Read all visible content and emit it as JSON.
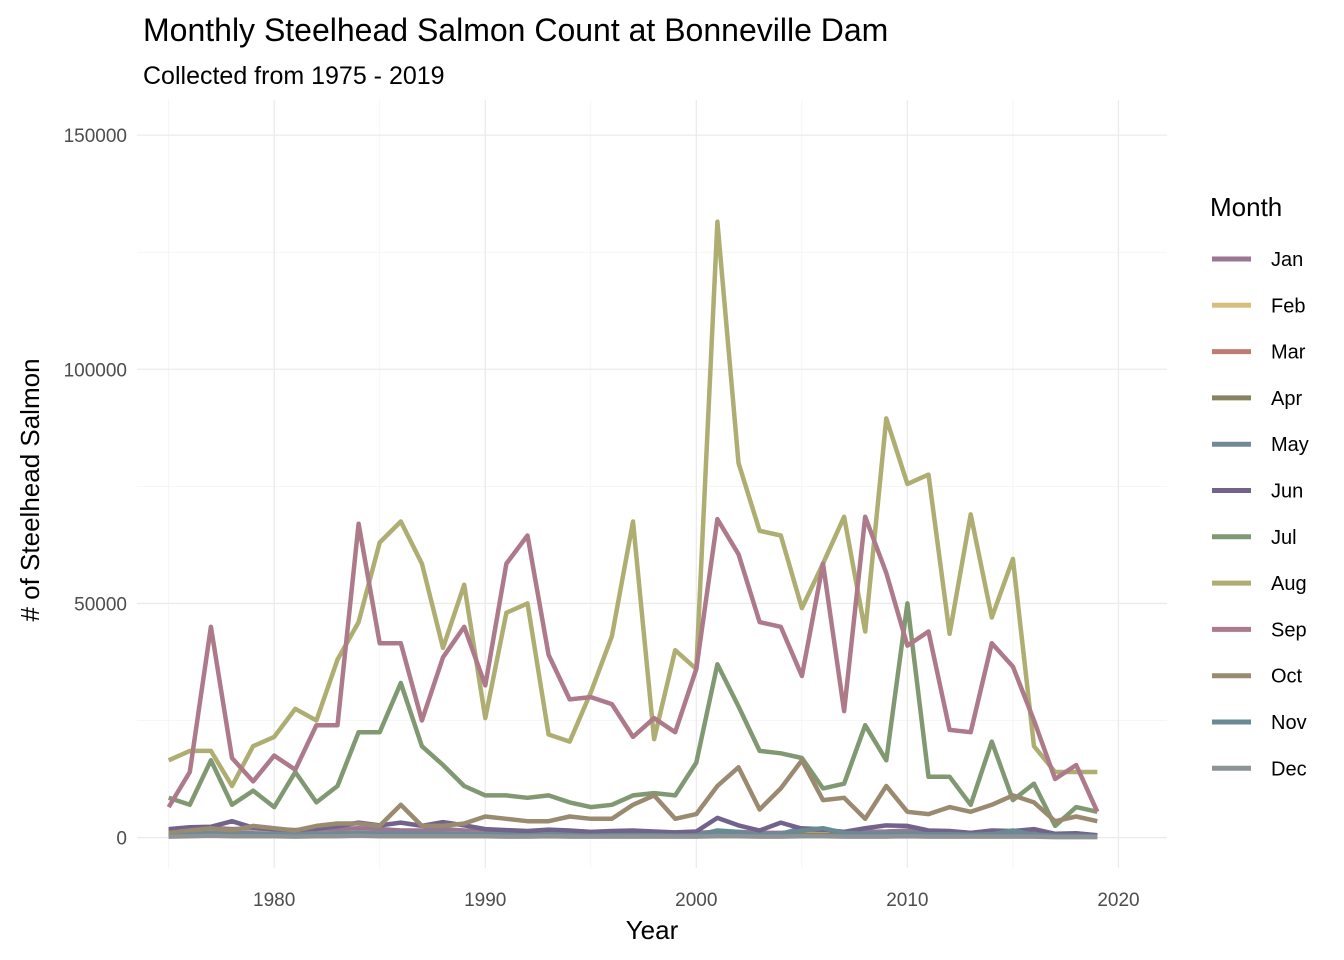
{
  "chart_data": {
    "type": "line",
    "title": "Monthly Steelhead Salmon Count at Bonneville Dam",
    "subtitle": "Collected from 1975 - 2019",
    "xlabel": "Year",
    "ylabel": "# of Steelhead Salmon",
    "xlim": [
      1973.5,
      2022.3
    ],
    "ylim": [
      -6500,
      157500
    ],
    "x_ticks": [
      1980,
      1990,
      2000,
      2010,
      2020
    ],
    "x_tick_labels": [
      "1980",
      "1990",
      "2000",
      "2010",
      "2020"
    ],
    "y_ticks": [
      0,
      50000,
      100000,
      150000
    ],
    "y_tick_labels": [
      "0",
      "50000",
      "100000",
      "150000"
    ],
    "grid": true,
    "legend_title": "Month",
    "legend_position": "right",
    "x": [
      1975,
      1976,
      1977,
      1978,
      1979,
      1980,
      1981,
      1982,
      1983,
      1984,
      1985,
      1986,
      1987,
      1988,
      1989,
      1990,
      1991,
      1992,
      1993,
      1994,
      1995,
      1996,
      1997,
      1998,
      1999,
      2000,
      2001,
      2002,
      2003,
      2004,
      2005,
      2006,
      2007,
      2008,
      2009,
      2010,
      2011,
      2012,
      2013,
      2014,
      2015,
      2016,
      2017,
      2018,
      2019
    ],
    "series": [
      {
        "name": "Jan",
        "color": "#9b7592",
        "values": [
          1500,
          2000,
          2100,
          1800,
          2000,
          1500,
          1200,
          1500,
          1800,
          2000,
          1800,
          1500,
          1500,
          1800,
          1500,
          1200,
          1000,
          1000,
          1200,
          1000,
          800,
          1000,
          1000,
          900,
          800,
          1000,
          1200,
          1200,
          1000,
          1000,
          1200,
          1100,
          1000,
          1200,
          1300,
          1500,
          1300,
          1200,
          1000,
          1000,
          1000,
          800,
          600,
          600,
          500
        ]
      },
      {
        "name": "Feb",
        "color": "#d8be7e",
        "values": [
          800,
          900,
          1000,
          900,
          1000,
          800,
          700,
          800,
          900,
          1000,
          900,
          800,
          800,
          900,
          800,
          700,
          600,
          600,
          700,
          600,
          500,
          600,
          600,
          500,
          500,
          600,
          700,
          700,
          600,
          600,
          700,
          600,
          600,
          700,
          700,
          800,
          700,
          700,
          600,
          600,
          600,
          500,
          400,
          400,
          300
        ]
      },
      {
        "name": "Mar",
        "color": "#c07b73",
        "values": [
          300,
          400,
          500,
          400,
          500,
          400,
          300,
          400,
          400,
          500,
          400,
          400,
          400,
          400,
          400,
          300,
          300,
          300,
          300,
          300,
          300,
          300,
          300,
          300,
          300,
          300,
          400,
          400,
          300,
          300,
          400,
          300,
          300,
          300,
          300,
          400,
          300,
          300,
          300,
          300,
          300,
          300,
          200,
          200,
          200
        ]
      },
      {
        "name": "Apr",
        "color": "#86845f",
        "values": [
          600,
          700,
          800,
          700,
          800,
          600,
          600,
          700,
          700,
          800,
          700,
          700,
          700,
          700,
          700,
          600,
          500,
          500,
          600,
          500,
          500,
          500,
          500,
          500,
          500,
          500,
          600,
          600,
          500,
          500,
          600,
          500,
          500,
          500,
          500,
          600,
          500,
          500,
          500,
          500,
          500,
          400,
          300,
          300,
          300
        ]
      },
      {
        "name": "May",
        "color": "#728a98",
        "values": [
          800,
          900,
          1000,
          900,
          900,
          800,
          700,
          800,
          900,
          1000,
          900,
          900,
          900,
          900,
          800,
          700,
          700,
          700,
          700,
          700,
          600,
          700,
          700,
          700,
          600,
          700,
          800,
          800,
          700,
          800,
          2000,
          1800,
          900,
          900,
          900,
          1000,
          900,
          800,
          800,
          1200,
          900,
          700,
          500,
          500,
          400
        ]
      },
      {
        "name": "Jun",
        "color": "#71638b",
        "values": [
          1800,
          2200,
          2300,
          3500,
          2100,
          1800,
          1600,
          1900,
          2400,
          3200,
          2600,
          3200,
          2500,
          3300,
          2600,
          1800,
          1600,
          1400,
          1700,
          1500,
          1200,
          1400,
          1500,
          1300,
          1100,
          1300,
          4200,
          2600,
          1500,
          3200,
          1900,
          1700,
          1200,
          2000,
          2600,
          2500,
          1500,
          1400,
          1000,
          1500,
          1400,
          1800,
          800,
          900,
          500
        ]
      },
      {
        "name": "Jul",
        "color": "#819972",
        "values": [
          8500,
          7000,
          16500,
          7000,
          10000,
          6500,
          14000,
          7500,
          11000,
          22500,
          22500,
          33000,
          19500,
          15500,
          11000,
          9000,
          9000,
          8500,
          9000,
          7500,
          6500,
          7000,
          9000,
          9500,
          9000,
          16000,
          37000,
          28000,
          18500,
          18000,
          17000,
          10500,
          11500,
          24000,
          16500,
          50000,
          13000,
          13000,
          7000,
          20500,
          8000,
          11500,
          2500,
          6500,
          5500
        ]
      },
      {
        "name": "Aug",
        "color": "#aeae72",
        "values": [
          16500,
          18500,
          18500,
          11000,
          19500,
          21500,
          27500,
          25000,
          38000,
          46000,
          63000,
          67500,
          58500,
          40500,
          54000,
          25500,
          48000,
          50000,
          22000,
          20500,
          31000,
          43000,
          67500,
          21000,
          40000,
          36000,
          131500,
          80000,
          65500,
          64500,
          49000,
          58500,
          68500,
          44000,
          89500,
          75500,
          77500,
          43500,
          69000,
          47000,
          59500,
          19500,
          14000,
          14000,
          14000
        ]
      },
      {
        "name": "Sep",
        "color": "#ad7a8a",
        "values": [
          6500,
          14000,
          45000,
          17000,
          12000,
          17500,
          14500,
          24000,
          24000,
          67000,
          41500,
          41500,
          25000,
          38500,
          45000,
          32500,
          58500,
          64500,
          39000,
          29500,
          30000,
          28500,
          21500,
          25500,
          22500,
          36000,
          68000,
          60500,
          46000,
          45000,
          34500,
          58500,
          27000,
          68500,
          56500,
          41000,
          44000,
          23000,
          22500,
          41500,
          36500,
          25000,
          12500,
          15500,
          5500
        ]
      },
      {
        "name": "Oct",
        "color": "#9a8a70",
        "values": [
          1000,
          1500,
          2000,
          1500,
          2500,
          2000,
          1500,
          2500,
          3000,
          3000,
          2500,
          7000,
          2500,
          2500,
          3000,
          4500,
          4000,
          3500,
          3500,
          4500,
          4000,
          4000,
          7000,
          9000,
          4000,
          5000,
          11000,
          15000,
          6000,
          10500,
          16500,
          8000,
          8500,
          4000,
          11000,
          5500,
          5000,
          6500,
          5500,
          7000,
          9000,
          7500,
          3500,
          4500,
          3500
        ]
      },
      {
        "name": "Nov",
        "color": "#6a8a93",
        "values": [
          300,
          600,
          700,
          600,
          600,
          500,
          400,
          500,
          600,
          700,
          600,
          600,
          600,
          600,
          600,
          500,
          500,
          500,
          500,
          500,
          400,
          500,
          500,
          500,
          400,
          500,
          1500,
          1200,
          500,
          600,
          1500,
          2000,
          1000,
          800,
          800,
          900,
          700,
          700,
          600,
          700,
          1500,
          600,
          400,
          400,
          300
        ]
      },
      {
        "name": "Dec",
        "color": "#8e9496",
        "values": [
          200,
          300,
          400,
          300,
          300,
          300,
          200,
          300,
          300,
          400,
          300,
          300,
          300,
          300,
          300,
          300,
          200,
          200,
          300,
          200,
          200,
          200,
          200,
          200,
          200,
          200,
          300,
          300,
          200,
          200,
          300,
          300,
          200,
          200,
          200,
          300,
          200,
          200,
          200,
          200,
          200,
          200,
          100,
          100,
          100
        ]
      }
    ]
  }
}
